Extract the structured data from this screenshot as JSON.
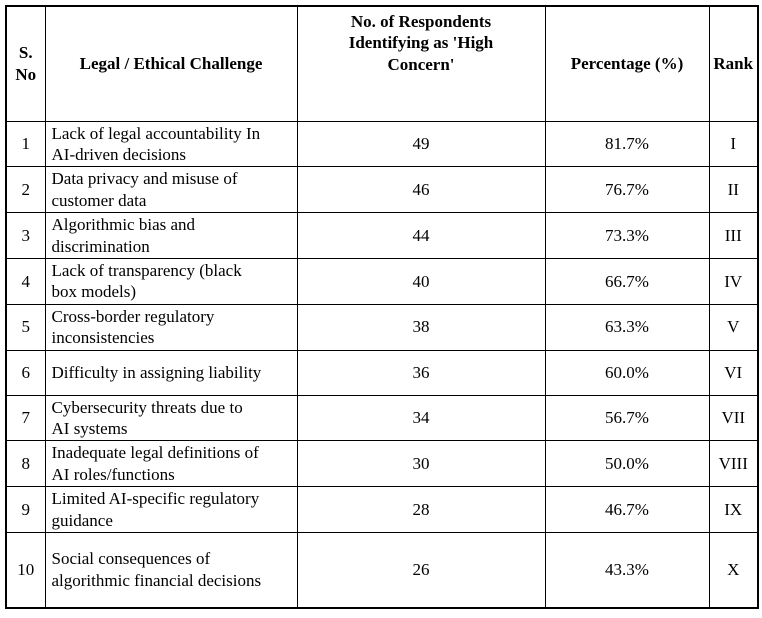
{
  "colors": {
    "border": "#000000",
    "background": "#ffffff",
    "text": "#000000"
  },
  "table": {
    "headers": {
      "sno": "S. No",
      "challenge": "Legal / Ethical Challenge",
      "respondents": "No. of Respondents Identifying as 'High Concern'",
      "percentage": "Percentage (%)",
      "rank": "Rank"
    },
    "rows": [
      {
        "sno": "1",
        "challenge": "Lack of legal accountability In AI-driven decisions",
        "respondents": "49",
        "percentage": "81.7%",
        "rank": "I"
      },
      {
        "sno": "2",
        "challenge": "Data privacy and misuse of customer data",
        "respondents": "46",
        "percentage": "76.7%",
        "rank": "II"
      },
      {
        "sno": "3",
        "challenge": "Algorithmic bias and discrimination",
        "respondents": "44",
        "percentage": "73.3%",
        "rank": "III"
      },
      {
        "sno": "4",
        "challenge": "Lack of transparency (black box models)",
        "respondents": "40",
        "percentage": "66.7%",
        "rank": "IV"
      },
      {
        "sno": "5",
        "challenge": "Cross-border regulatory inconsistencies",
        "respondents": "38",
        "percentage": "63.3%",
        "rank": "V"
      },
      {
        "sno": "6",
        "challenge": "Difficulty in assigning liability",
        "respondents": "36",
        "percentage": "60.0%",
        "rank": "VI"
      },
      {
        "sno": "7",
        "challenge": "Cybersecurity threats due to AI systems",
        "respondents": "34",
        "percentage": "56.7%",
        "rank": "VII"
      },
      {
        "sno": "8",
        "challenge": "Inadequate legal definitions of AI roles/functions",
        "respondents": "30",
        "percentage": "50.0%",
        "rank": "VIII"
      },
      {
        "sno": "9",
        "challenge": "Limited AI-specific regulatory guidance",
        "respondents": "28",
        "percentage": "46.7%",
        "rank": "IX"
      },
      {
        "sno": "10",
        "challenge": "Social consequences of algorithmic financial decisions",
        "respondents": "26",
        "percentage": "43.3%",
        "rank": "X"
      }
    ]
  }
}
